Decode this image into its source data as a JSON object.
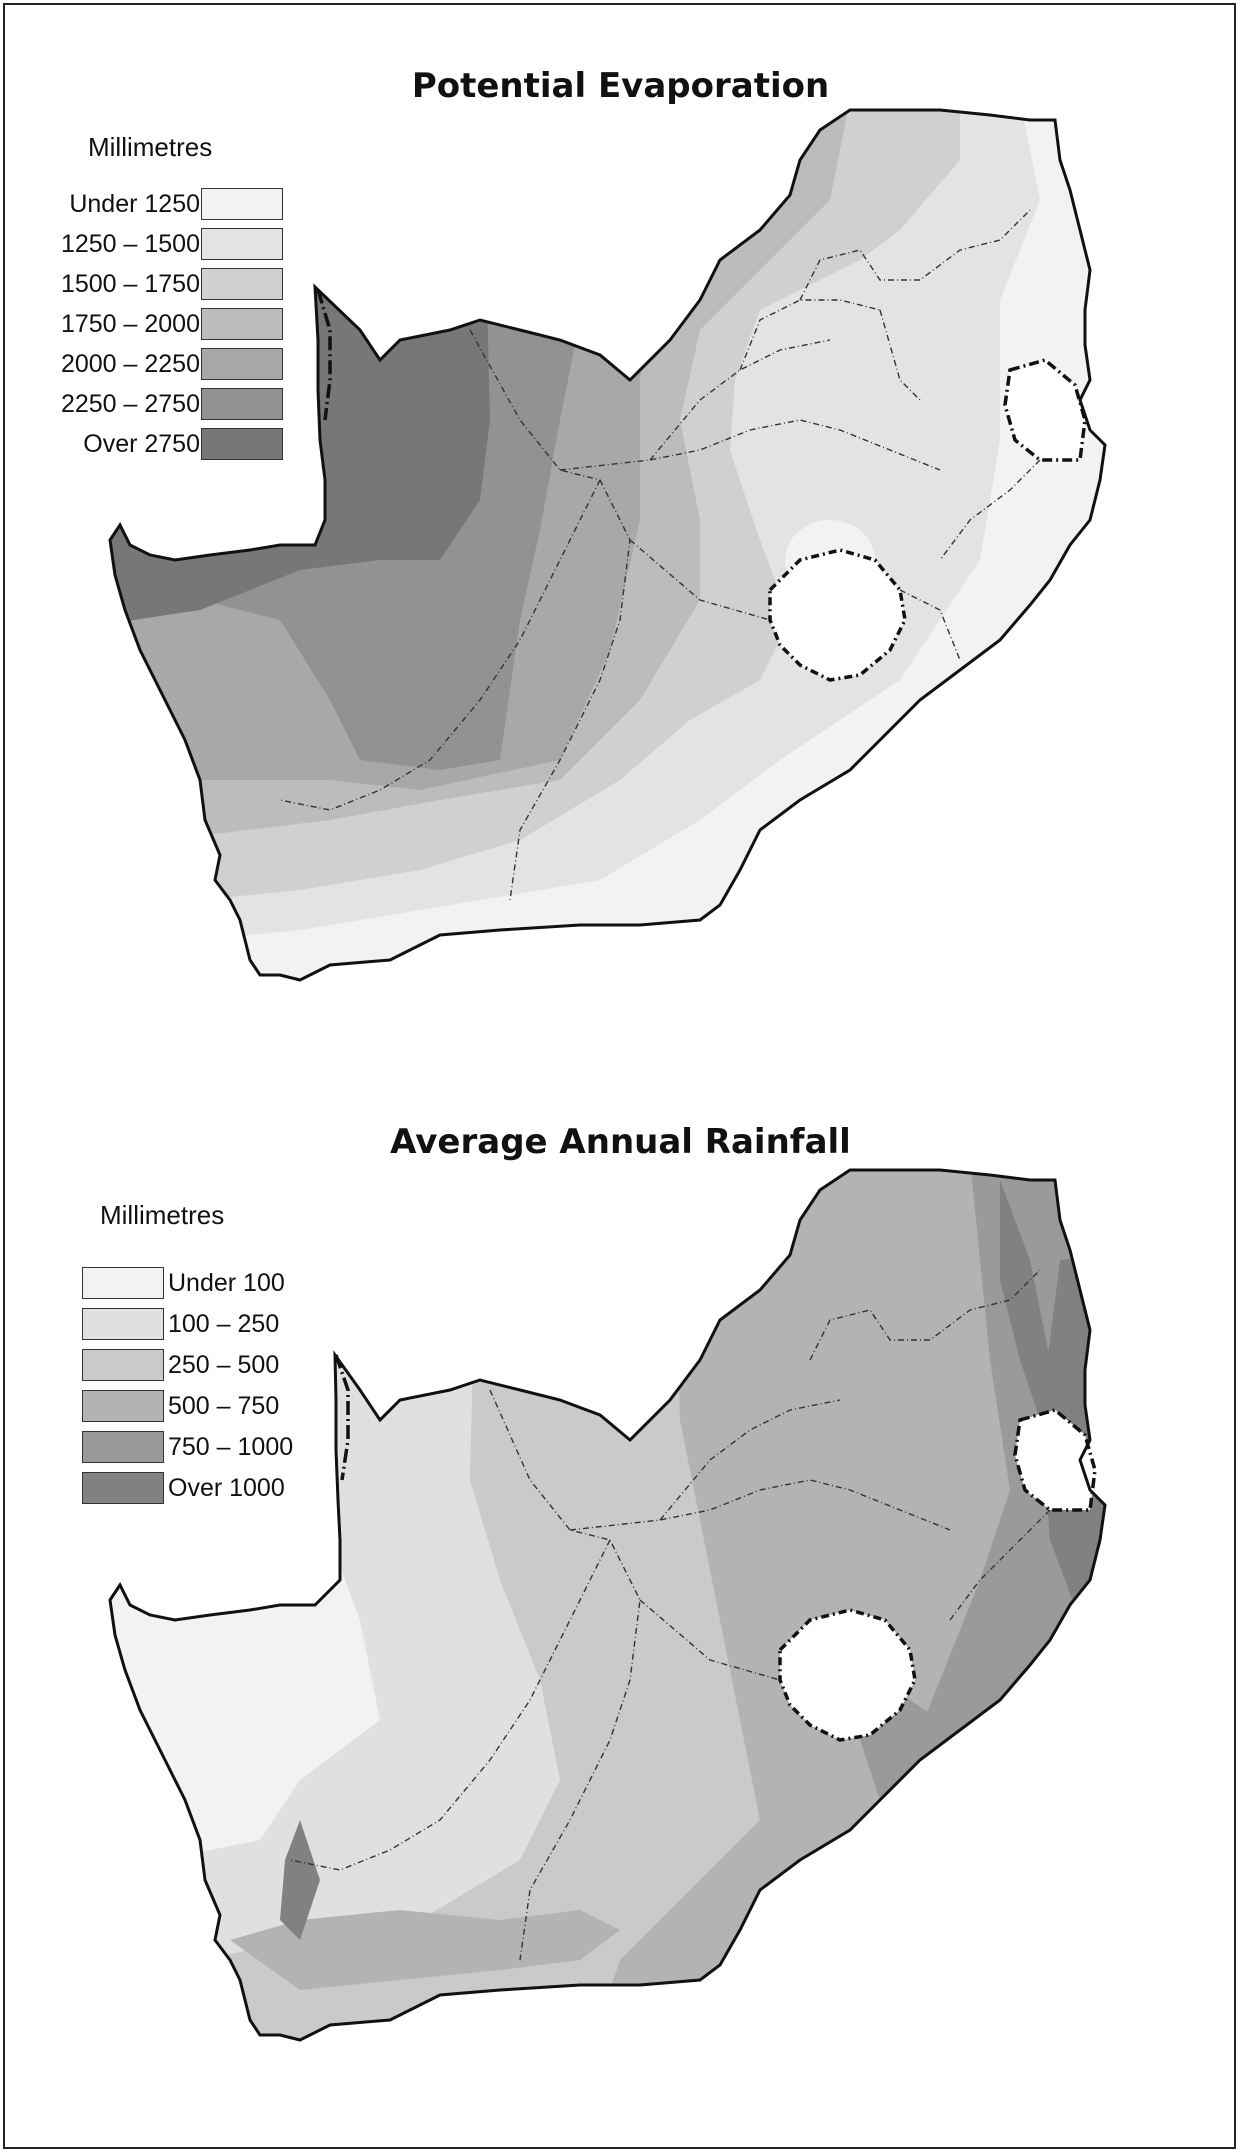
{
  "maps": [
    {
      "title": "Potential Evaporation",
      "legend": {
        "unit": "Millimetres",
        "classes": [
          {
            "label": "Under 1250",
            "color": "#f2f2f2"
          },
          {
            "label": "1250 – 1500",
            "color": "#e3e3e3"
          },
          {
            "label": "1500 – 1750",
            "color": "#d0d0d0"
          },
          {
            "label": "1750 – 2000",
            "color": "#bcbcbc"
          },
          {
            "label": "2000 – 2250",
            "color": "#a8a8a8"
          },
          {
            "label": "2250 – 2750",
            "color": "#929292"
          },
          {
            "label": "Over 2750",
            "color": "#777777"
          }
        ]
      }
    },
    {
      "title": "Average Annual Rainfall",
      "legend": {
        "unit": "Millimetres",
        "classes": [
          {
            "label": "Under 100",
            "color": "#f2f2f2"
          },
          {
            "label": "100 – 250",
            "color": "#e0e0e0"
          },
          {
            "label": "250 – 500",
            "color": "#cacaca"
          },
          {
            "label": "500 – 750",
            "color": "#b3b3b3"
          },
          {
            "label": "750 – 1000",
            "color": "#9a9a9a"
          },
          {
            "label": "Over 1000",
            "color": "#818181"
          }
        ]
      }
    }
  ]
}
